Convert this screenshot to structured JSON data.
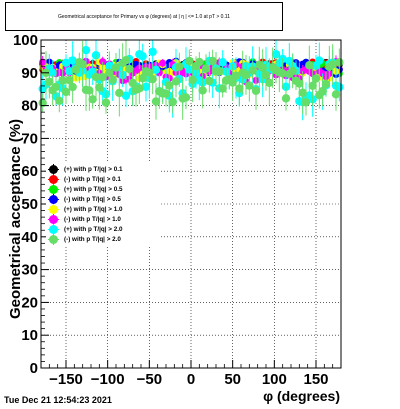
{
  "title": "Geometrical acceptance for Primary vs φ (degrees) at | η | <= 1.0 at pT > 0.11",
  "footer_timestamp": "Tue Dec 21 12:54:23 2021",
  "chart_data": {
    "type": "scatter",
    "xlabel": "φ (degrees)",
    "ylabel": "Geometrical acceptance (%)",
    "xlim": [
      -180,
      180
    ],
    "ylim": [
      0,
      100
    ],
    "x_ticks": [
      -150,
      -100,
      -50,
      0,
      50,
      100,
      150
    ],
    "y_ticks": [
      0,
      10,
      20,
      30,
      40,
      50,
      60,
      70,
      80,
      90,
      100
    ],
    "grid": true,
    "legend_position": "left-middle",
    "series": [
      {
        "name": "(+) with p T/|q| > 0.1",
        "color": "#000000",
        "mean": 92,
        "spread": 1.0,
        "err": 0.3
      },
      {
        "name": "(-) with p T/|q| > 0.1",
        "color": "#ff0000",
        "mean": 92,
        "spread": 1.2,
        "err": 0.4
      },
      {
        "name": "(+) with p T/|q| > 0.5",
        "color": "#00ee00",
        "mean": 91.5,
        "spread": 1.5,
        "err": 0.5
      },
      {
        "name": "(-) with p T/|q| > 0.5",
        "color": "#0000ff",
        "mean": 91.5,
        "spread": 1.5,
        "err": 0.6
      },
      {
        "name": "(+) with p T/|q| > 1.0",
        "color": "#ffff00",
        "mean": 91,
        "spread": 2.0,
        "err": 0.9
      },
      {
        "name": "(-) with p T/|q| > 1.0",
        "color": "#ff00ff",
        "mean": 90.5,
        "spread": 2.5,
        "err": 1.2
      },
      {
        "name": "(+) with p T/|q| > 2.0",
        "color": "#00ffff",
        "mean": 89,
        "spread": 6.0,
        "err": 4.0
      },
      {
        "name": "(-) with p T/|q| > 2.0",
        "color": "#66dd66",
        "mean": 87,
        "spread": 6.0,
        "err": 4.5
      }
    ]
  }
}
